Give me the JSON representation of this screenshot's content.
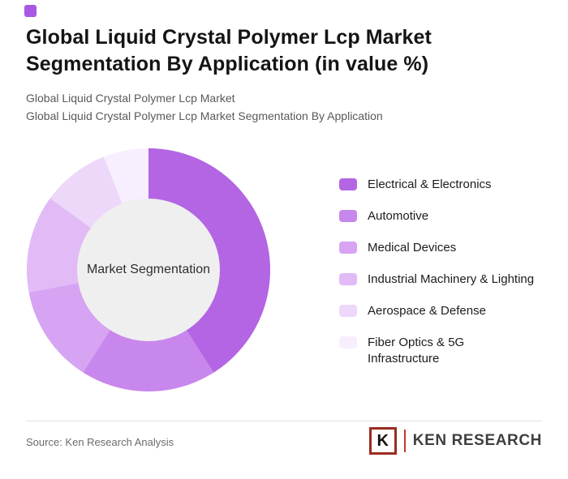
{
  "brand": {
    "color": "#a958e3"
  },
  "header": {
    "title": "Global Liquid Crystal Polymer Lcp Market Segmentation By Application (in value %)",
    "subtitle_line1": "Global Liquid Crystal Polymer Lcp Market",
    "subtitle_line2": "Global Liquid Crystal Polymer Lcp Market Segmentation By Application"
  },
  "chart_data": {
    "type": "pie",
    "donut": true,
    "title": "Global Liquid Crystal Polymer Lcp Market Segmentation By Application (in value %)",
    "unit": "value %",
    "center_label": "Market Segmentation",
    "center_color": "#efefef",
    "start_angle_deg": 0,
    "legend_position": "right",
    "segments": [
      {
        "label": "Electrical & Electronics",
        "value": 41,
        "color": "#b365e3"
      },
      {
        "label": "Automotive",
        "value": 18,
        "color": "#c887ec"
      },
      {
        "label": "Medical Devices",
        "value": 13,
        "color": "#d6a4f2"
      },
      {
        "label": "Industrial Machinery & Lighting",
        "value": 13,
        "color": "#e1baf6"
      },
      {
        "label": "Aerospace & Defense",
        "value": 9,
        "color": "#edd8fa"
      },
      {
        "label": "Fiber Optics & 5G\nInfrastructure",
        "value": 6,
        "color": "#f7effd"
      }
    ]
  },
  "footer": {
    "source": "Source: Ken Research Analysis",
    "logo": {
      "letter": "K",
      "text": "KEN RESEARCH",
      "accent_color": "#c13a2e"
    }
  }
}
